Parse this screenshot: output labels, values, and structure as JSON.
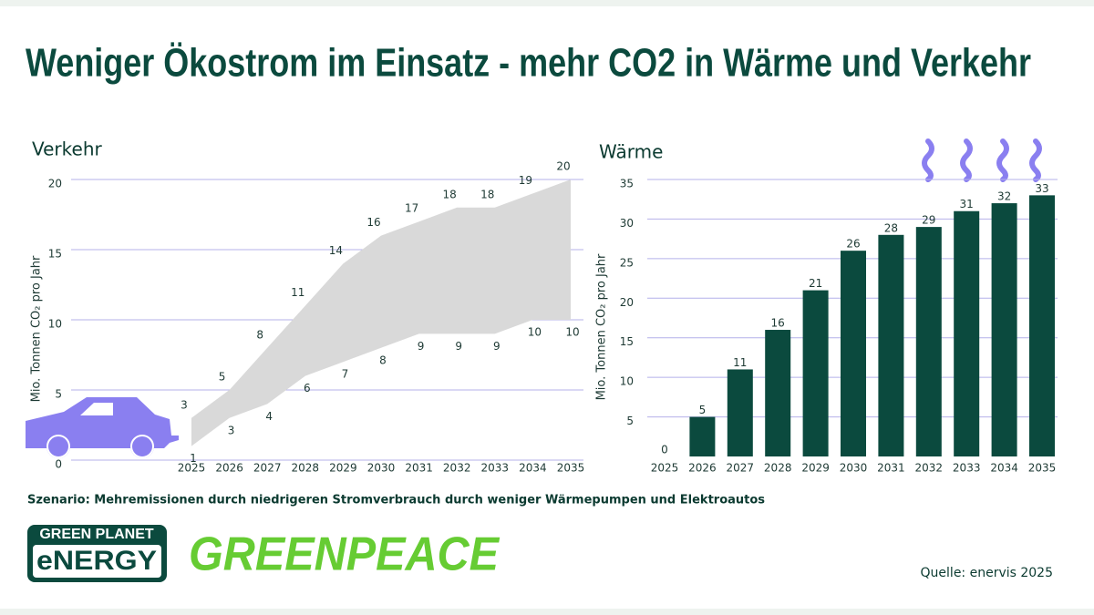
{
  "title": "Weniger Ökostrom im Einsatz - mehr CO2 in Wärme und Verkehr",
  "note": "Szenario: Mehremissionen durch niedrigeren Stromverbrauch durch weniger Wärmepumpen und Elektroautos",
  "source": "Quelle: enervis 2025",
  "logos": [
    "GREEN PLANET",
    "eNERGY",
    "GREENPEACE"
  ],
  "chart_data": [
    {
      "type": "area",
      "title": "Verkehr",
      "y_label": "Mio. Tonnen CO₂ pro Jahr",
      "categories": [
        "2025",
        "2026",
        "2027",
        "2028",
        "2029",
        "2030",
        "2031",
        "2032",
        "2033",
        "2034",
        "2035"
      ],
      "series": [
        {
          "color": "#d9d9d9",
          "values": [
            3,
            5,
            8,
            11,
            14,
            16,
            17,
            18,
            18,
            19,
            20
          ]
        },
        {
          "color": "#d9d9d9",
          "values": [
            1,
            3,
            4,
            6,
            7,
            8,
            9,
            9,
            9,
            10,
            10
          ]
        }
      ],
      "ylim": [
        0,
        20
      ],
      "yticks": [
        0,
        5,
        10,
        15,
        20
      ],
      "grid": true
    },
    {
      "type": "bar",
      "title": "Wärme",
      "y_label": "Mio. Tonnen CO₂ pro Jahr",
      "categories": [
        "2025",
        "2026",
        "2027",
        "2028",
        "2029",
        "2030",
        "2031",
        "2032",
        "2033",
        "2034",
        "2035"
      ],
      "values": [
        0,
        5,
        11,
        16,
        21,
        26,
        28,
        29,
        31,
        32,
        33
      ],
      "color": "#0b4a3e",
      "ylim": [
        0,
        35
      ],
      "yticks": [
        5,
        10,
        15,
        20,
        25,
        30,
        35
      ],
      "grid": true
    }
  ]
}
